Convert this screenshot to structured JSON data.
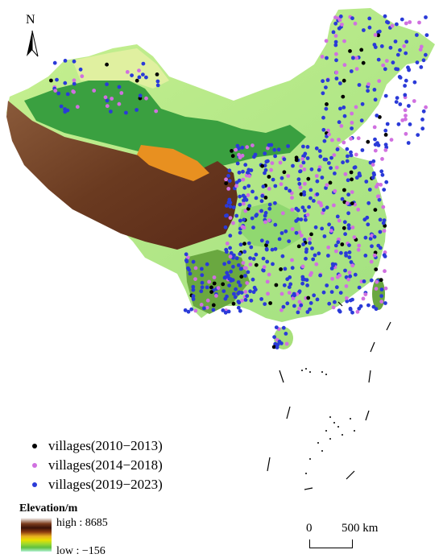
{
  "map": {
    "north_label": "N",
    "legend": [
      {
        "label": "villages(2010−2013)",
        "color": "#000000"
      },
      {
        "label": "villages(2014−2018)",
        "color": "#d070e0"
      },
      {
        "label": "villages(2019−2023)",
        "color": "#2a3ad8"
      }
    ],
    "elevation": {
      "title": "Elevation/m",
      "high_label": "high : 8685",
      "low_label": "low : −156"
    },
    "scale": {
      "zero_label": "0",
      "distance_label": "500 km"
    },
    "colors": {
      "plateau_brown": "#7a4a2a",
      "basin_green": "#3aa040",
      "desert_orange": "#e89020",
      "lowland_green": "#a8e07a"
    }
  }
}
